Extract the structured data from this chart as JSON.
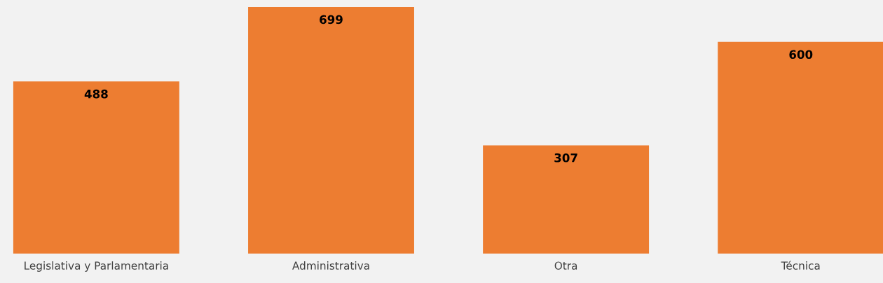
{
  "chart_data": {
    "type": "bar",
    "categories": [
      "Legislativa y Parlamentaria",
      "Administrativa",
      "Otra",
      "Técnica"
    ],
    "values": [
      488,
      699,
      307,
      600
    ],
    "color": "#ed7d31",
    "data_labels": true,
    "grid": false,
    "legend": false
  }
}
